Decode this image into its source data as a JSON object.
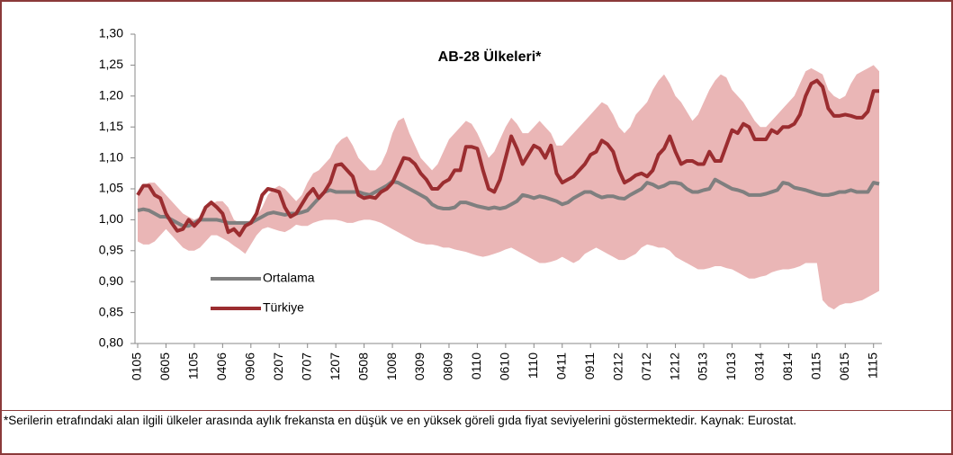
{
  "chart_data": {
    "type": "line",
    "title": "AB-28 Ülkeleri*",
    "note": "*Serilerin etrafındaki alan ilgili ülkeler arasında aylık frekansta en düşük ve en yüksek göreli gıda fiyat seviyelerini göstermektedir.  Kaynak: Eurostat.",
    "categories": [
      "0105",
      null,
      null,
      null,
      null,
      "0605",
      null,
      null,
      null,
      null,
      "1105",
      null,
      null,
      null,
      null,
      "0406",
      null,
      null,
      null,
      null,
      "0906",
      null,
      null,
      null,
      null,
      "0207",
      null,
      null,
      null,
      null,
      "0707",
      null,
      null,
      null,
      null,
      "1207",
      null,
      null,
      null,
      null,
      "0508",
      null,
      null,
      null,
      null,
      "1008",
      null,
      null,
      null,
      null,
      "0309",
      null,
      null,
      null,
      null,
      "0809",
      null,
      null,
      null,
      null,
      "0110",
      null,
      null,
      null,
      null,
      "0610",
      null,
      null,
      null,
      null,
      "1110",
      null,
      null,
      null,
      null,
      "0411",
      null,
      null,
      null,
      null,
      "0911",
      null,
      null,
      null,
      null,
      "0212",
      null,
      null,
      null,
      null,
      "0712",
      null,
      null,
      null,
      null,
      "1212",
      null,
      null,
      null,
      null,
      "0513",
      null,
      null,
      null,
      null,
      "1013",
      null,
      null,
      null,
      null,
      "0314",
      null,
      null,
      null,
      null,
      "0814",
      null,
      null,
      null,
      null,
      "0115",
      null,
      null,
      null,
      null,
      "0615",
      null,
      null,
      null,
      null,
      "1115",
      null
    ],
    "range": {
      "color": "#eab6b6",
      "low": [
        0.965,
        0.96,
        0.96,
        0.965,
        0.975,
        0.985,
        0.975,
        0.965,
        0.955,
        0.95,
        0.95,
        0.955,
        0.965,
        0.975,
        0.975,
        0.97,
        0.965,
        0.958,
        0.952,
        0.945,
        0.96,
        0.975,
        0.985,
        0.988,
        0.985,
        0.982,
        0.98,
        0.985,
        0.992,
        0.99,
        0.99,
        0.995,
        0.998,
        1.0,
        1.0,
        1.0,
        0.998,
        0.995,
        0.995,
        0.998,
        1.0,
        1.0,
        0.998,
        0.995,
        0.99,
        0.985,
        0.98,
        0.975,
        0.97,
        0.965,
        0.962,
        0.96,
        0.96,
        0.958,
        0.955,
        0.955,
        0.952,
        0.95,
        0.948,
        0.945,
        0.942,
        0.94,
        0.942,
        0.945,
        0.948,
        0.952,
        0.955,
        0.95,
        0.945,
        0.94,
        0.935,
        0.93,
        0.93,
        0.932,
        0.935,
        0.94,
        0.935,
        0.93,
        0.935,
        0.945,
        0.95,
        0.955,
        0.95,
        0.945,
        0.94,
        0.935,
        0.935,
        0.94,
        0.945,
        0.955,
        0.96,
        0.958,
        0.955,
        0.955,
        0.95,
        0.94,
        0.935,
        0.93,
        0.925,
        0.92,
        0.92,
        0.922,
        0.925,
        0.925,
        0.922,
        0.92,
        0.915,
        0.91,
        0.905,
        0.905,
        0.908,
        0.91,
        0.915,
        0.918,
        0.92,
        0.92,
        0.922,
        0.925,
        0.93,
        0.93,
        0.93,
        0.87,
        0.86,
        0.855,
        0.862,
        0.865,
        0.865,
        0.868,
        0.87,
        0.875,
        0.88,
        0.885
      ],
      "high": [
        1.045,
        1.055,
        1.06,
        1.06,
        1.05,
        1.04,
        1.03,
        1.02,
        1.01,
        1.005,
        1.0,
        1.005,
        1.015,
        1.025,
        1.03,
        1.03,
        1.02,
        1.0,
        0.995,
        0.995,
        1.0,
        1.005,
        1.02,
        1.04,
        1.05,
        1.055,
        1.05,
        1.04,
        1.03,
        1.04,
        1.06,
        1.075,
        1.08,
        1.09,
        1.1,
        1.12,
        1.13,
        1.135,
        1.12,
        1.1,
        1.09,
        1.08,
        1.08,
        1.09,
        1.11,
        1.14,
        1.16,
        1.165,
        1.14,
        1.12,
        1.1,
        1.09,
        1.08,
        1.09,
        1.11,
        1.13,
        1.14,
        1.15,
        1.16,
        1.155,
        1.14,
        1.12,
        1.1,
        1.11,
        1.13,
        1.15,
        1.165,
        1.155,
        1.14,
        1.14,
        1.15,
        1.16,
        1.15,
        1.14,
        1.12,
        1.12,
        1.13,
        1.14,
        1.15,
        1.16,
        1.17,
        1.18,
        1.19,
        1.185,
        1.17,
        1.15,
        1.14,
        1.15,
        1.17,
        1.18,
        1.19,
        1.21,
        1.225,
        1.235,
        1.22,
        1.2,
        1.19,
        1.175,
        1.16,
        1.17,
        1.19,
        1.21,
        1.225,
        1.235,
        1.23,
        1.21,
        1.2,
        1.19,
        1.175,
        1.16,
        1.15,
        1.15,
        1.16,
        1.17,
        1.18,
        1.19,
        1.2,
        1.22,
        1.24,
        1.245,
        1.24,
        1.235,
        1.21,
        1.2,
        1.195,
        1.2,
        1.22,
        1.235,
        1.24,
        1.245,
        1.25,
        1.24
      ]
    },
    "series": [
      {
        "name": "Ortalama",
        "color": "#7f7f7f",
        "values": [
          1.015,
          1.017,
          1.015,
          1.01,
          1.005,
          1.005,
          1.0,
          0.995,
          0.99,
          0.99,
          0.995,
          1.0,
          1.0,
          1.0,
          1.0,
          0.998,
          0.995,
          0.995,
          0.995,
          0.995,
          0.995,
          1.0,
          1.005,
          1.01,
          1.012,
          1.01,
          1.008,
          1.01,
          1.01,
          1.012,
          1.015,
          1.025,
          1.035,
          1.045,
          1.048,
          1.045,
          1.045,
          1.045,
          1.045,
          1.045,
          1.042,
          1.04,
          1.045,
          1.05,
          1.055,
          1.062,
          1.06,
          1.055,
          1.05,
          1.045,
          1.04,
          1.035,
          1.025,
          1.02,
          1.018,
          1.018,
          1.02,
          1.028,
          1.028,
          1.025,
          1.022,
          1.02,
          1.018,
          1.02,
          1.018,
          1.02,
          1.025,
          1.03,
          1.04,
          1.038,
          1.035,
          1.038,
          1.036,
          1.033,
          1.03,
          1.025,
          1.028,
          1.035,
          1.04,
          1.045,
          1.045,
          1.04,
          1.036,
          1.038,
          1.038,
          1.035,
          1.034,
          1.04,
          1.045,
          1.05,
          1.06,
          1.057,
          1.052,
          1.055,
          1.06,
          1.06,
          1.058,
          1.05,
          1.045,
          1.045,
          1.048,
          1.05,
          1.065,
          1.06,
          1.055,
          1.05,
          1.048,
          1.045,
          1.04,
          1.04,
          1.04,
          1.042,
          1.045,
          1.048,
          1.06,
          1.058,
          1.052,
          1.05,
          1.048,
          1.045,
          1.042,
          1.04,
          1.04,
          1.042,
          1.045,
          1.045,
          1.048,
          1.045,
          1.045,
          1.045,
          1.06,
          1.058
        ]
      },
      {
        "name": "Türkiye",
        "color": "#9b2d30",
        "values": [
          1.04,
          1.055,
          1.055,
          1.04,
          1.035,
          1.01,
          0.995,
          0.982,
          0.985,
          1.0,
          0.99,
          1.0,
          1.02,
          1.028,
          1.02,
          1.01,
          0.98,
          0.985,
          0.975,
          0.99,
          0.995,
          1.01,
          1.04,
          1.05,
          1.048,
          1.045,
          1.02,
          1.005,
          1.01,
          1.025,
          1.04,
          1.05,
          1.035,
          1.045,
          1.06,
          1.088,
          1.09,
          1.08,
          1.07,
          1.04,
          1.035,
          1.037,
          1.035,
          1.045,
          1.05,
          1.06,
          1.08,
          1.1,
          1.098,
          1.09,
          1.075,
          1.065,
          1.05,
          1.05,
          1.06,
          1.065,
          1.08,
          1.08,
          1.118,
          1.118,
          1.115,
          1.08,
          1.05,
          1.045,
          1.065,
          1.1,
          1.135,
          1.115,
          1.09,
          1.105,
          1.12,
          1.115,
          1.1,
          1.12,
          1.075,
          1.06,
          1.065,
          1.07,
          1.08,
          1.09,
          1.105,
          1.11,
          1.128,
          1.122,
          1.11,
          1.08,
          1.06,
          1.065,
          1.072,
          1.075,
          1.07,
          1.08,
          1.105,
          1.115,
          1.135,
          1.11,
          1.09,
          1.095,
          1.095,
          1.09,
          1.09,
          1.11,
          1.095,
          1.095,
          1.12,
          1.145,
          1.14,
          1.155,
          1.15,
          1.13,
          1.13,
          1.13,
          1.145,
          1.14,
          1.15,
          1.15,
          1.155,
          1.17,
          1.2,
          1.22,
          1.225,
          1.215,
          1.18,
          1.168,
          1.168,
          1.17,
          1.168,
          1.165,
          1.165,
          1.175,
          1.208,
          1.208
        ]
      }
    ],
    "ylim": [
      0.8,
      1.3
    ],
    "yticks": [
      {
        "value": 0.8,
        "label": "0,80"
      },
      {
        "value": 0.85,
        "label": "0,85"
      },
      {
        "value": 0.9,
        "label": "0,90"
      },
      {
        "value": 0.95,
        "label": "0,95"
      },
      {
        "value": 1.0,
        "label": "1,00"
      },
      {
        "value": 1.05,
        "label": "1,05"
      },
      {
        "value": 1.1,
        "label": "1,10"
      },
      {
        "value": 1.15,
        "label": "1,15"
      },
      {
        "value": 1.2,
        "label": "1,20"
      },
      {
        "value": 1.25,
        "label": "1,25"
      },
      {
        "value": 1.3,
        "label": "1,30"
      }
    ],
    "grid": false,
    "legend": "lower left"
  }
}
